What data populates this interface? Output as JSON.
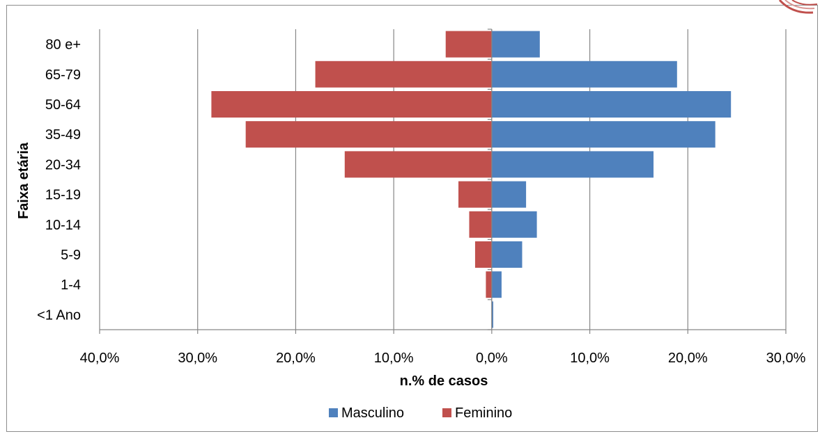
{
  "chart_data": {
    "type": "bar",
    "orientation": "horizontal",
    "categories": [
      "80 e+",
      "65-79",
      "50-64",
      "35-49",
      "20-34",
      "15-19",
      "10-14",
      "5-9",
      "1-4",
      "<1 Ano"
    ],
    "series": [
      {
        "name": "Masculino",
        "color": "#4f81bd",
        "values": [
          4.9,
          18.9,
          24.4,
          22.8,
          16.5,
          3.5,
          4.6,
          3.1,
          1.0,
          0.15
        ]
      },
      {
        "name": "Feminino",
        "color": "#c0504d",
        "values": [
          4.7,
          18.0,
          28.6,
          25.1,
          15.0,
          3.4,
          2.3,
          1.7,
          0.6,
          0.0
        ]
      }
    ],
    "xlabel": "n.% de casos",
    "ylabel": "Faixa etária",
    "xlim": [
      -40,
      30
    ],
    "x_ticks": [
      -40,
      -30,
      -20,
      -10,
      0,
      10,
      20,
      30
    ],
    "x_tick_labels": [
      "40,0%",
      "30,0%",
      "20,0%",
      "10,0%",
      "0,0%",
      "10,0%",
      "20,0%",
      "30,0%"
    ],
    "grid": "vertical",
    "legend_position": "bottom"
  }
}
